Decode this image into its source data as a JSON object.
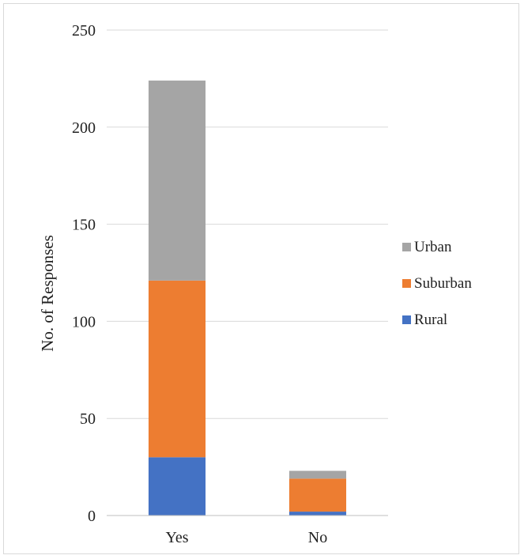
{
  "chart_data": {
    "type": "bar",
    "stacked": true,
    "title": "",
    "xlabel": "",
    "ylabel": "No. of Responses",
    "categories": [
      "Yes",
      "No"
    ],
    "series": [
      {
        "name": "Rural",
        "values": [
          30,
          2
        ],
        "color": "#4472c4"
      },
      {
        "name": "Suburban",
        "values": [
          91,
          17
        ],
        "color": "#ed7d31"
      },
      {
        "name": "Urban",
        "values": [
          103,
          4
        ],
        "color": "#a5a5a5"
      }
    ],
    "ylim": [
      0,
      250
    ],
    "yticks": [
      0,
      50,
      100,
      150,
      200,
      250
    ],
    "grid": true,
    "legend": "right",
    "legend_order": [
      "Urban",
      "Suburban",
      "Rural"
    ]
  }
}
